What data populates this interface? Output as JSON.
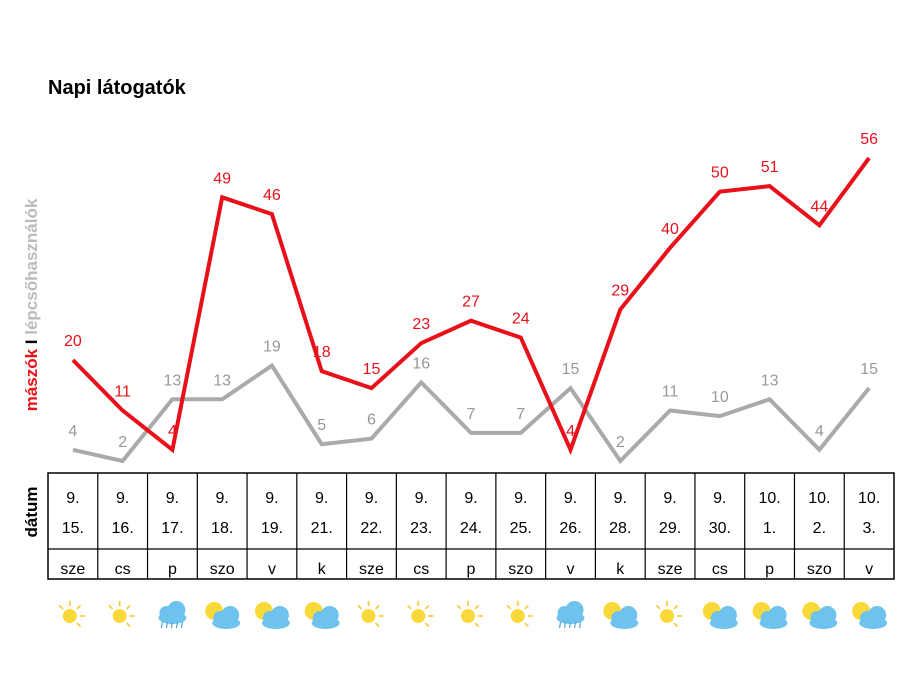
{
  "chart_data": {
    "type": "line",
    "title": "Napi látogatók",
    "ylabel_parts": [
      "mászók",
      " I ",
      "lépcsőhasználók"
    ],
    "table_row_label": "dátum",
    "categories": [
      "9. 15. sze",
      "9. 16. cs",
      "9. 17. p",
      "9. 18. szo",
      "9. 19. v",
      "9. 21. k",
      "9. 22. sze",
      "9. 23. cs",
      "9. 24. p",
      "9. 25. szo",
      "9. 26. v",
      "9. 28. k",
      "9. 29. sze",
      "9. 30. cs",
      "10. 1. p",
      "10. 2. szo",
      "10. 3. v"
    ],
    "dates": [
      [
        "9.",
        "15."
      ],
      [
        "9.",
        "16."
      ],
      [
        "9.",
        "17."
      ],
      [
        "9.",
        "18."
      ],
      [
        "9.",
        "19."
      ],
      [
        "9.",
        "21."
      ],
      [
        "9.",
        "22."
      ],
      [
        "9.",
        "23."
      ],
      [
        "9.",
        "24."
      ],
      [
        "9.",
        "25."
      ],
      [
        "9.",
        "26."
      ],
      [
        "9.",
        "28."
      ],
      [
        "9.",
        "29."
      ],
      [
        "9.",
        "30."
      ],
      [
        "10.",
        "1."
      ],
      [
        "10.",
        "2."
      ],
      [
        "10.",
        "3."
      ]
    ],
    "weekdays": [
      "sze",
      "cs",
      "p",
      "szo",
      "v",
      "k",
      "sze",
      "cs",
      "p",
      "szo",
      "v",
      "k",
      "sze",
      "cs",
      "p",
      "szo",
      "v"
    ],
    "series": [
      {
        "name": "mászók",
        "color": "#e8111a",
        "values": [
          20,
          11,
          4,
          49,
          46,
          18,
          15,
          23,
          27,
          24,
          4,
          29,
          40,
          50,
          51,
          44,
          56
        ]
      },
      {
        "name": "lépcsőhasználók",
        "color": "#aaaaaa",
        "values": [
          4,
          2,
          13,
          13,
          19,
          5,
          6,
          16,
          7,
          7,
          15,
          2,
          11,
          10,
          13,
          4,
          15
        ]
      }
    ],
    "ylim": [
      2,
      56
    ],
    "grid": false,
    "weather_icons": [
      "sun",
      "sun",
      "rain-cloud",
      "sun-cloud",
      "sun-cloud",
      "sun-cloud",
      "sun",
      "sun",
      "sun",
      "sun",
      "rain-cloud",
      "sun-cloud",
      "sun",
      "sun-cloud",
      "sun-cloud",
      "sun-cloud",
      "sun-cloud"
    ]
  }
}
